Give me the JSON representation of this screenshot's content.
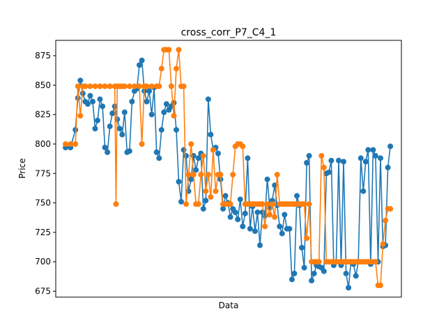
{
  "chart_data": {
    "type": "line",
    "title": "cross_corr_P7_C4_1",
    "xlabel": "Data",
    "ylabel": "Price",
    "ylim": [
      670,
      888
    ],
    "xlim": [
      -8,
      273
    ],
    "y_ticks": [
      675,
      700,
      725,
      750,
      775,
      800,
      825,
      850,
      875
    ],
    "y_tick_labels": [
      "675",
      "700",
      "725",
      "750",
      "775",
      "800",
      "825",
      "850",
      "875"
    ],
    "grid": false,
    "legend": "none",
    "series": [
      {
        "name": "series-blue",
        "color": "#1f77b4",
        "marker": "circle",
        "x": [
          0,
          4,
          8,
          10,
          12,
          14,
          16,
          18,
          20,
          22,
          24,
          26,
          28,
          30,
          32,
          34,
          36,
          38,
          40,
          42,
          44,
          46,
          48,
          50,
          52,
          54,
          56,
          58,
          60,
          62,
          64,
          66,
          68,
          70,
          72,
          74,
          76,
          78,
          80,
          82,
          84,
          86,
          88,
          90,
          92,
          94,
          96,
          98,
          100,
          102,
          104,
          106,
          108,
          110,
          112,
          114,
          116,
          118,
          120,
          122,
          124,
          126,
          128,
          130,
          132,
          134,
          136,
          138,
          140,
          142,
          144,
          146,
          148,
          150,
          152,
          154,
          156,
          158,
          160,
          162,
          164,
          166,
          168,
          170,
          172,
          174,
          176,
          178,
          180,
          182,
          184,
          186,
          188,
          190,
          192,
          194,
          196,
          198,
          200,
          202,
          204,
          206,
          208,
          210,
          212,
          214,
          216,
          218,
          220,
          222,
          224,
          226,
          228,
          230,
          232,
          234,
          236,
          238,
          240,
          242,
          244,
          246,
          248,
          250,
          252,
          254,
          256,
          258,
          260,
          262,
          264
        ],
        "y": [
          797,
          797,
          812,
          839,
          854,
          843,
          836,
          834,
          841,
          836,
          813,
          820,
          838,
          832,
          797,
          793,
          815,
          826,
          832,
          821,
          813,
          808,
          827,
          793,
          794,
          836,
          845,
          847,
          867,
          871,
          845,
          836,
          845,
          825,
          848,
          793,
          788,
          812,
          827,
          834,
          829,
          832,
          835,
          812,
          768,
          751,
          795,
          790,
          760,
          770,
          790,
          778,
          788,
          792,
          745,
          752,
          838,
          808,
          795,
          797,
          792,
          770,
          745,
          756,
          750,
          738,
          745,
          742,
          736,
          753,
          730,
          741,
          788,
          728,
          747,
          726,
          742,
          714,
          742,
          739,
          770,
          746,
          752,
          765,
          748,
          730,
          724,
          740,
          728,
          728,
          685,
          690,
          756,
          748,
          712,
          695,
          784,
          790,
          684,
          690,
          697,
          696,
          695,
          692,
          775,
          776,
          786,
          697,
          700,
          786,
          697,
          785,
          690,
          678,
          700,
          698,
          688,
          700,
          788,
          760,
          785,
          795,
          698,
          795,
          790,
          700,
          788,
          713,
          714,
          780,
          798
        ]
      },
      {
        "name": "series-orange",
        "color": "#ff7f0e",
        "marker": "circle",
        "x": [
          0,
          4,
          8,
          10,
          12,
          14,
          16,
          20,
          24,
          28,
          32,
          36,
          40,
          41,
          42,
          44,
          46,
          48,
          52,
          56,
          60,
          62,
          64,
          66,
          70,
          74,
          76,
          78,
          80,
          82,
          84,
          86,
          88,
          90,
          92,
          94,
          96,
          98,
          100,
          102,
          104,
          106,
          108,
          110,
          112,
          114,
          116,
          118,
          120,
          122,
          124,
          126,
          128,
          130,
          132,
          134,
          136,
          138,
          140,
          142,
          144,
          146,
          148,
          150,
          152,
          154,
          156,
          158,
          160,
          162,
          164,
          166,
          168,
          170,
          172,
          174,
          176,
          178,
          180,
          182,
          184,
          186,
          188,
          190,
          192,
          194,
          196,
          198,
          200,
          202,
          204,
          206,
          208,
          210,
          212,
          214,
          216,
          218,
          220,
          222,
          224,
          226,
          228,
          230,
          232,
          234,
          236,
          238,
          240,
          242,
          244,
          246,
          248,
          250,
          252,
          254,
          256,
          258,
          260,
          262,
          264
        ],
        "y": [
          800,
          800,
          800,
          849,
          824,
          849,
          849,
          849,
          849,
          849,
          849,
          849,
          849,
          749,
          849,
          849,
          849,
          849,
          849,
          849,
          849,
          800,
          849,
          849,
          849,
          849,
          849,
          864,
          880,
          880,
          880,
          849,
          824,
          864,
          880,
          849,
          849,
          749,
          774,
          800,
          774,
          749,
          749,
          774,
          790,
          760,
          774,
          755,
          795,
          760,
          774,
          774,
          749,
          749,
          749,
          749,
          774,
          798,
          800,
          800,
          798,
          749,
          749,
          749,
          749,
          749,
          749,
          749,
          749,
          730,
          749,
          740,
          749,
          738,
          774,
          749,
          749,
          749,
          749,
          749,
          749,
          749,
          749,
          749,
          749,
          749,
          720,
          749,
          700,
          700,
          700,
          700,
          790,
          780,
          700,
          700,
          700,
          700,
          700,
          700,
          700,
          700,
          700,
          700,
          700,
          700,
          700,
          700,
          700,
          700,
          700,
          700,
          700,
          700,
          700,
          680,
          680,
          715,
          735,
          745,
          745
        ]
      }
    ]
  }
}
